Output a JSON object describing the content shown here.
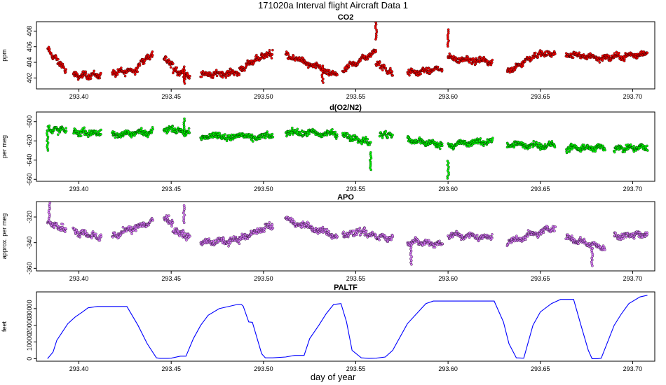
{
  "figure_title": "171020a   Interval flight Aircraft Data 1",
  "x_axis_label": "day of year",
  "colors": {
    "co2": "#ff0000",
    "o2n2": "#00ff00",
    "apo": "#dd77ff",
    "paltf": "#0000ff",
    "outline": "#000000"
  },
  "chart_data": [
    {
      "type": "scatter",
      "title": "CO2",
      "ylabel": "ppm",
      "xlim": [
        293.377,
        293.712
      ],
      "ylim": [
        400.6,
        409.2
      ],
      "x_ticks": [
        "293.40",
        "293.45",
        "293.50",
        "293.55",
        "293.60",
        "293.65",
        "293.70"
      ],
      "y_ticks": [
        "402",
        "404",
        "406",
        "408"
      ],
      "segments": [
        {
          "x": [
            293.383,
            293.393
          ],
          "y": [
            405.6,
            403.0
          ]
        },
        {
          "x": [
            293.397,
            293.412
          ],
          "y": [
            402.3,
            402.4
          ]
        },
        {
          "x": [
            293.418,
            293.432
          ],
          "y": [
            402.6,
            403.1
          ]
        },
        {
          "x": [
            293.432,
            293.44
          ],
          "y": [
            403.8,
            404.9
          ]
        },
        {
          "x": [
            293.446,
            293.451
          ],
          "y": [
            404.6,
            403.6
          ]
        },
        {
          "x": [
            293.451,
            293.46
          ],
          "y": [
            403.1,
            402.2
          ]
        },
        {
          "x": [
            293.466,
            293.487
          ],
          "y": [
            402.4,
            402.7
          ]
        },
        {
          "x": [
            293.487,
            293.499
          ],
          "y": [
            403.0,
            404.8
          ]
        },
        {
          "x": [
            293.499,
            293.505
          ],
          "y": [
            404.9,
            405.1
          ]
        },
        {
          "x": [
            293.512,
            293.54
          ],
          "y": [
            405.0,
            402.3
          ]
        },
        {
          "x": [
            293.543,
            293.561
          ],
          "y": [
            403.0,
            405.4
          ]
        },
        {
          "x": [
            293.561,
            293.57
          ],
          "y": [
            404.0,
            402.5
          ]
        },
        {
          "x": [
            293.578,
            293.597
          ],
          "y": [
            402.6,
            403.2
          ]
        },
        {
          "x": [
            293.6,
            293.624
          ],
          "y": [
            404.5,
            404.1
          ]
        },
        {
          "x": [
            293.632,
            293.647
          ],
          "y": [
            402.8,
            404.9
          ]
        },
        {
          "x": [
            293.647,
            293.658
          ],
          "y": [
            405.0,
            405.1
          ]
        },
        {
          "x": [
            293.664,
            293.687
          ],
          "y": [
            405.0,
            404.5
          ]
        },
        {
          "x": [
            293.687,
            293.708
          ],
          "y": [
            404.6,
            405.1
          ]
        }
      ],
      "spikes": [
        {
          "x": 293.561,
          "y": 409.1
        },
        {
          "x": 293.6,
          "y": 408.2
        },
        {
          "x": 293.457,
          "y": 401.3
        },
        {
          "x": 293.532,
          "y": 401.4
        }
      ]
    },
    {
      "type": "scatter",
      "title": "d(O2/N2)",
      "ylabel": "per meg",
      "xlim": [
        293.377,
        293.712
      ],
      "ylim": [
        -662,
        -590
      ],
      "x_ticks": [
        "293.40",
        "293.45",
        "293.50",
        "293.55",
        "293.60",
        "293.65",
        "293.70"
      ],
      "y_ticks": [
        "-600",
        "-620",
        "-640",
        "-660"
      ],
      "segments": [
        {
          "x": [
            293.383,
            293.393
          ],
          "y": [
            -608,
            -609
          ]
        },
        {
          "x": [
            293.397,
            293.412
          ],
          "y": [
            -611,
            -612
          ]
        },
        {
          "x": [
            293.418,
            293.44
          ],
          "y": [
            -614,
            -610
          ]
        },
        {
          "x": [
            293.446,
            293.46
          ],
          "y": [
            -607,
            -611
          ]
        },
        {
          "x": [
            293.466,
            293.505
          ],
          "y": [
            -615,
            -616
          ]
        },
        {
          "x": [
            293.512,
            293.54
          ],
          "y": [
            -611,
            -613
          ]
        },
        {
          "x": [
            293.543,
            293.558
          ],
          "y": [
            -614,
            -622
          ]
        },
        {
          "x": [
            293.563,
            293.57
          ],
          "y": [
            -613,
            -614
          ]
        },
        {
          "x": [
            293.578,
            293.597
          ],
          "y": [
            -619,
            -624
          ]
        },
        {
          "x": [
            293.6,
            293.624
          ],
          "y": [
            -624,
            -620
          ]
        },
        {
          "x": [
            293.632,
            293.658
          ],
          "y": [
            -624,
            -625
          ]
        },
        {
          "x": [
            293.664,
            293.685
          ],
          "y": [
            -628,
            -627
          ]
        },
        {
          "x": [
            293.69,
            293.708
          ],
          "y": [
            -628,
            -627
          ]
        }
      ],
      "spikes": [
        {
          "x": 293.558,
          "y": -650
        },
        {
          "x": 293.6,
          "y": -659
        },
        {
          "x": 293.457,
          "y": -597
        },
        {
          "x": 293.383,
          "y": -630
        }
      ]
    },
    {
      "type": "scatter",
      "title": "APO",
      "ylabel": "approx. per meg",
      "xlim": [
        293.377,
        293.712
      ],
      "ylim": [
        -362,
        -308
      ],
      "x_ticks": [
        "293.40",
        "293.45",
        "293.50",
        "293.55",
        "293.60",
        "293.65",
        "293.70"
      ],
      "y_ticks": [
        "-320",
        "-340",
        "-360"
      ],
      "segments": [
        {
          "x": [
            293.383,
            293.393
          ],
          "y": [
            -324,
            -330
          ]
        },
        {
          "x": [
            293.397,
            293.412
          ],
          "y": [
            -331,
            -336
          ]
        },
        {
          "x": [
            293.418,
            293.44
          ],
          "y": [
            -335,
            -323
          ]
        },
        {
          "x": [
            293.446,
            293.451
          ],
          "y": [
            -320,
            -325
          ]
        },
        {
          "x": [
            293.451,
            293.46
          ],
          "y": [
            -330,
            -336
          ]
        },
        {
          "x": [
            293.466,
            293.487
          ],
          "y": [
            -340,
            -338
          ]
        },
        {
          "x": [
            293.487,
            293.505
          ],
          "y": [
            -337,
            -326
          ]
        },
        {
          "x": [
            293.512,
            293.54
          ],
          "y": [
            -322,
            -335
          ]
        },
        {
          "x": [
            293.543,
            293.555
          ],
          "y": [
            -334,
            -331
          ]
        },
        {
          "x": [
            293.555,
            293.57
          ],
          "y": [
            -333,
            -337
          ]
        },
        {
          "x": [
            293.578,
            293.597
          ],
          "y": [
            -339,
            -341
          ]
        },
        {
          "x": [
            293.6,
            293.624
          ],
          "y": [
            -334,
            -336
          ]
        },
        {
          "x": [
            293.632,
            293.658
          ],
          "y": [
            -340,
            -328
          ]
        },
        {
          "x": [
            293.664,
            293.685
          ],
          "y": [
            -336,
            -344
          ]
        },
        {
          "x": [
            293.69,
            293.708
          ],
          "y": [
            -335,
            -333
          ]
        }
      ],
      "spikes": [
        {
          "x": 293.384,
          "y": -309
        },
        {
          "x": 293.457,
          "y": -311
        },
        {
          "x": 293.58,
          "y": -357
        },
        {
          "x": 293.678,
          "y": -358
        }
      ]
    },
    {
      "type": "line",
      "title": "PALTF",
      "ylabel": "feet",
      "xlim": [
        293.377,
        293.712
      ],
      "ylim": [
        -1500,
        40000
      ],
      "x_ticks": [
        "293.40",
        "293.45",
        "293.50",
        "293.55",
        "293.60",
        "293.65",
        "293.70"
      ],
      "y_ticks": [
        "0",
        "10000",
        "20000",
        "30000"
      ],
      "x": [
        293.383,
        293.386,
        293.388,
        293.391,
        293.394,
        293.398,
        293.402,
        293.405,
        293.41,
        293.42,
        293.426,
        293.432,
        293.437,
        293.442,
        293.444,
        293.448,
        293.45,
        293.455,
        293.458,
        293.462,
        293.466,
        293.47,
        293.476,
        293.48,
        293.486,
        293.488,
        293.489,
        293.492,
        293.494,
        293.499,
        293.501,
        293.505,
        293.512,
        293.517,
        293.522,
        293.525,
        293.53,
        293.534,
        293.538,
        293.542,
        293.545,
        293.548,
        293.553,
        293.557,
        293.561,
        293.566,
        293.57,
        293.578,
        293.588,
        293.592,
        293.597,
        293.601,
        293.605,
        293.609,
        293.612,
        293.62,
        293.625,
        293.63,
        293.633,
        293.637,
        293.641,
        293.646,
        293.65,
        293.656,
        293.661,
        293.668,
        293.672,
        293.676,
        293.678,
        293.681,
        293.683,
        293.69,
        293.694,
        293.698,
        293.704,
        293.708
      ],
      "y": [
        0,
        4000,
        11000,
        16000,
        21000,
        25000,
        28000,
        30500,
        31300,
        31300,
        31300,
        20000,
        9000,
        500,
        200,
        200,
        300,
        1500,
        1500,
        12000,
        20000,
        26000,
        30000,
        31000,
        32500,
        32500,
        31500,
        22000,
        21800,
        3000,
        500,
        500,
        1000,
        2000,
        2000,
        12000,
        20000,
        27000,
        32500,
        33000,
        22000,
        5000,
        500,
        200,
        300,
        1000,
        5000,
        21000,
        33000,
        34500,
        34500,
        34500,
        34500,
        34500,
        34500,
        34500,
        34500,
        22000,
        9000,
        500,
        300,
        20000,
        28000,
        33000,
        35500,
        35500,
        20000,
        5000,
        0,
        0,
        300,
        20000,
        27000,
        33000,
        37000,
        38000
      ]
    }
  ]
}
